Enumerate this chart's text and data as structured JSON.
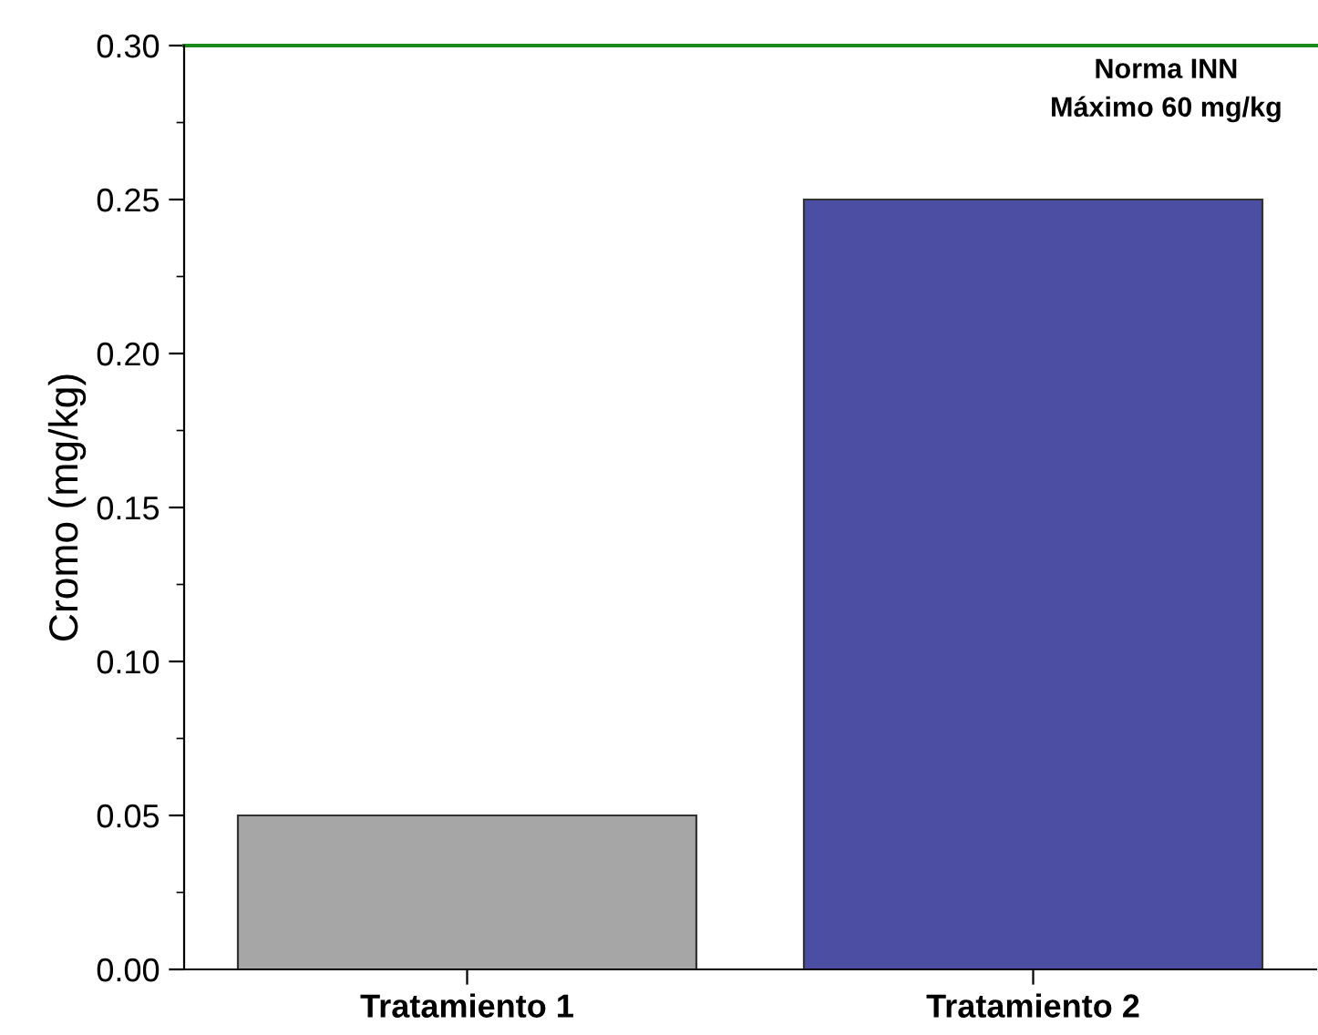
{
  "chart_data": {
    "type": "bar",
    "ylabel": "Cromo (mg/kg)",
    "categories": [
      "Tratamiento 1",
      "Tratamiento 2"
    ],
    "values": [
      0.05,
      0.25
    ],
    "colors": [
      "#a6a6a6",
      "#4b4ea3"
    ],
    "ylim": [
      0,
      0.3
    ],
    "yticks": [
      {
        "value": 0,
        "label": "0.00"
      },
      {
        "value": 0.05,
        "label": "0.05"
      },
      {
        "value": 0.1,
        "label": "0.10"
      },
      {
        "value": 0.15,
        "label": "0.15"
      },
      {
        "value": 0.2,
        "label": "0.20"
      },
      {
        "value": 0.25,
        "label": "0.25"
      },
      {
        "value": 0.3,
        "label": "0.30"
      }
    ],
    "ref_lines": [
      {
        "axis": "y",
        "value": 0.3,
        "label": "Norma INN\nMáximo 60 mg/kg",
        "color": "#1a8a1a"
      }
    ],
    "grid": false,
    "legend": false
  }
}
